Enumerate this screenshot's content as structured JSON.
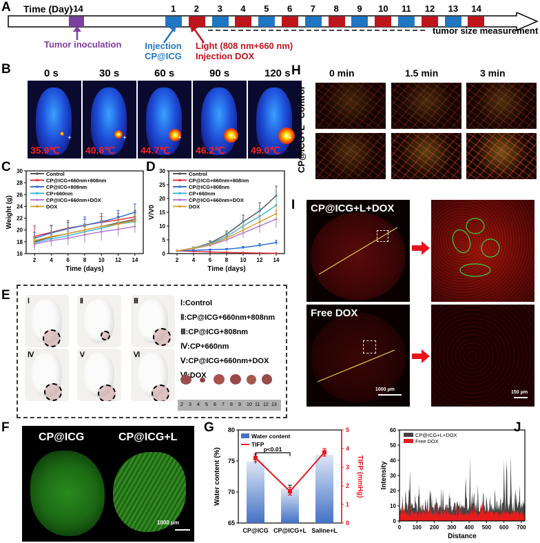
{
  "panels": {
    "A": "A",
    "B": "B",
    "C": "C",
    "D": "D",
    "E": "E",
    "F": "F",
    "G": "G",
    "H": "H",
    "I": "I",
    "J": "J"
  },
  "timeline": {
    "title": "Time (Day)",
    "day_neg": "-14",
    "days": [
      "1",
      "2",
      "3",
      "4",
      "5",
      "6",
      "7",
      "8",
      "9",
      "10",
      "11",
      "12",
      "13",
      "14"
    ],
    "tumor_inoculation": "Tumor inoculation",
    "injection_line1": "Injection",
    "injection_line2": "CP@ICG",
    "light_line1": "Light (808 nm+660 nm)",
    "light_line2": "Injection DOX",
    "measurement": "tumor size measurement",
    "colors": {
      "purple": "#7b3fa0",
      "blue": "#1f77c4",
      "red": "#c0141c"
    }
  },
  "thermal": {
    "times": [
      "0 s",
      "30 s",
      "60 s",
      "90 s",
      "120 s"
    ],
    "temps": [
      "35.9℃",
      "40.8℃",
      "44.7℃",
      "46.2℃",
      "49.0℃"
    ]
  },
  "chart_data": [
    {
      "id": "C",
      "type": "line",
      "xlabel": "Time (days)",
      "ylabel": "Weight (g)",
      "x": [
        2,
        4,
        6,
        8,
        10,
        12,
        14
      ],
      "xticks": [
        "2",
        "4",
        "6",
        "8",
        "10",
        "12",
        "14"
      ],
      "yticks": [
        "16",
        "18",
        "20",
        "22",
        "24",
        "26",
        "28",
        "30"
      ],
      "ylim": [
        16,
        30
      ],
      "xlim": [
        1,
        15
      ],
      "series": [
        {
          "name": "Control",
          "color": "#555555",
          "values": [
            18.0,
            18.8,
            19.4,
            20.0,
            20.6,
            21.2,
            21.8
          ],
          "err": [
            0.8,
            0.9,
            0.9,
            1.0,
            1.0,
            1.1,
            1.1
          ]
        },
        {
          "name": "CP@ICG+660nm+808nm",
          "color": "#e0303a",
          "values": [
            18.9,
            19.6,
            20.3,
            20.8,
            21.3,
            21.7,
            22.2
          ],
          "err": [
            1.8,
            1.2,
            1.0,
            1.0,
            1.0,
            1.1,
            1.1
          ]
        },
        {
          "name": "CP@ICG+808nm",
          "color": "#2f6fd6",
          "values": [
            18.6,
            19.5,
            20.2,
            20.8,
            21.4,
            22.1,
            23.0
          ],
          "err": [
            1.0,
            1.2,
            1.4,
            1.4,
            1.4,
            1.2,
            1.4
          ]
        },
        {
          "name": "CP+660nm",
          "color": "#3db8d8",
          "values": [
            17.8,
            18.5,
            19.0,
            19.7,
            20.3,
            21.0,
            21.4
          ],
          "err": [
            0.7,
            0.8,
            0.8,
            0.9,
            0.9,
            1.0,
            1.0
          ]
        },
        {
          "name": "CP@ICG+660nm+DOX",
          "color": "#b57ad8",
          "values": [
            17.6,
            18.2,
            18.6,
            19.2,
            19.7,
            20.1,
            20.6
          ],
          "err": [
            1.0,
            1.0,
            1.2,
            1.3,
            1.5,
            1.2,
            1.1
          ]
        },
        {
          "name": "DOX",
          "color": "#d8a030",
          "values": [
            18.2,
            18.9,
            19.4,
            20.0,
            20.6,
            21.0,
            21.6
          ],
          "err": [
            0.7,
            0.8,
            0.8,
            0.9,
            0.9,
            1.0,
            1.0
          ]
        }
      ]
    },
    {
      "id": "D",
      "type": "line",
      "xlabel": "Time (days)",
      "ylabel": "V/V0",
      "x": [
        2,
        4,
        6,
        8,
        10,
        12,
        14
      ],
      "xticks": [
        "2",
        "4",
        "6",
        "8",
        "10",
        "12",
        "14"
      ],
      "yticks": [
        "0",
        "5",
        "10",
        "15",
        "20",
        "25",
        "30"
      ],
      "ylim": [
        0,
        30
      ],
      "xlim": [
        1,
        15
      ],
      "series": [
        {
          "name": "Control",
          "color": "#555555",
          "values": [
            1.0,
            2.0,
            3.8,
            7.0,
            11.5,
            15.5,
            21.0
          ],
          "err": [
            0.1,
            0.4,
            0.8,
            1.2,
            2.5,
            3.0,
            3.5
          ]
        },
        {
          "name": "CP@ICG+660nm+808nm",
          "color": "#e0303a",
          "values": [
            1.0,
            0.8,
            0.6,
            0.4,
            0.3,
            0.2,
            0.1
          ],
          "err": [
            0.05,
            0.1,
            0.1,
            0.1,
            0.1,
            0.05,
            0.05
          ]
        },
        {
          "name": "CP@ICG+808nm",
          "color": "#2f6fd6",
          "values": [
            1.0,
            1.2,
            1.4,
            1.6,
            2.2,
            3.0,
            4.0
          ],
          "err": [
            0.1,
            0.2,
            0.2,
            0.3,
            0.4,
            0.6,
            0.8
          ]
        },
        {
          "name": "CP+660nm",
          "color": "#3db8d8",
          "values": [
            1.0,
            2.0,
            3.5,
            6.2,
            10.0,
            13.5,
            17.5
          ],
          "err": [
            0.1,
            0.4,
            0.8,
            1.3,
            2.0,
            2.8,
            3.5
          ]
        },
        {
          "name": "CP@ICG+660nm+DOX",
          "color": "#b57ad8",
          "values": [
            1.0,
            1.8,
            3.0,
            5.0,
            7.5,
            10.0,
            12.5
          ],
          "err": [
            0.1,
            0.3,
            0.7,
            1.2,
            1.8,
            2.5,
            3.0
          ]
        },
        {
          "name": "DOX",
          "color": "#d8a030",
          "values": [
            1.0,
            1.9,
            3.2,
            5.6,
            8.5,
            11.5,
            14.5
          ],
          "err": [
            0.1,
            0.3,
            0.6,
            1.1,
            1.7,
            2.3,
            3.0
          ]
        }
      ]
    },
    {
      "id": "G",
      "type": "bar",
      "ylabel": "Water content (%)",
      "y2label": "TIFP (mmHg)",
      "categories": [
        "CP@ICG",
        "CP@ICG+L",
        "Saline+L"
      ],
      "series": [
        {
          "name": "Water content",
          "color": "#4472c4",
          "values": [
            74.9,
            70.6,
            76.0
          ],
          "err": [
            0.3,
            0.5,
            0.3
          ]
        },
        {
          "name": "TIFP",
          "color": "#e8141c",
          "values": [
            3.5,
            1.7,
            3.8
          ],
          "err": [
            0.2,
            0.2,
            0.2
          ]
        }
      ],
      "yticks": [
        "65",
        "70",
        "75",
        "80"
      ],
      "ylim": [
        65,
        80
      ],
      "y2ticks": [
        "0",
        "1",
        "2",
        "3",
        "4",
        "5"
      ],
      "y2lim": [
        0,
        5
      ],
      "annotation": "p<0.01"
    },
    {
      "id": "J",
      "type": "area",
      "xlabel": "Distance",
      "ylabel": "Intensity",
      "xticks": [
        "0",
        "100",
        "200",
        "300",
        "400",
        "500",
        "600",
        "700"
      ],
      "yticks": [
        "0",
        "10",
        "20",
        "30",
        "40",
        "50",
        "60"
      ],
      "xlim": [
        0,
        720
      ],
      "ylim": [
        0,
        60
      ],
      "series": [
        {
          "name": "CP@ICG+L+DOX",
          "color": "#444444",
          "peaks": [
            [
              35,
              32
            ],
            [
              60,
              40
            ],
            [
              90,
              25
            ],
            [
              110,
              30
            ],
            [
              150,
              24
            ],
            [
              175,
              28
            ],
            [
              210,
              20
            ],
            [
              240,
              22
            ],
            [
              290,
              26
            ],
            [
              330,
              18
            ],
            [
              380,
              47
            ],
            [
              405,
              43
            ],
            [
              450,
              30
            ],
            [
              480,
              22
            ],
            [
              520,
              20
            ],
            [
              560,
              24
            ],
            [
              600,
              50
            ],
            [
              615,
              56
            ],
            [
              640,
              58
            ],
            [
              665,
              40
            ],
            [
              690,
              28
            ]
          ],
          "baseline": 9
        },
        {
          "name": "Free DOX",
          "color": "#e81c1c",
          "baseline": 5,
          "peaks": [
            [
              30,
              9
            ],
            [
              120,
              7
            ],
            [
              260,
              8
            ],
            [
              420,
              7
            ],
            [
              600,
              9
            ],
            [
              700,
              10
            ]
          ]
        }
      ]
    }
  ],
  "legend_items": [
    "Control",
    "CP@ICG+660nm+808nm",
    "CP@ICG+808nm",
    "CP+660nm",
    "CP@ICG+660nm+DOX",
    "DOX"
  ],
  "groupsE": [
    {
      "num": "Ⅰ",
      "label": "Ⅰ:Control"
    },
    {
      "num": "Ⅱ",
      "label": "Ⅱ:CP@ICG+660nm+808nm"
    },
    {
      "num": "Ⅲ",
      "label": "Ⅲ:CP@ICG+808nm"
    },
    {
      "num": "Ⅳ",
      "label": "Ⅳ:CP+660nm"
    },
    {
      "num": "Ⅴ",
      "label": "Ⅴ:CP@ICG+660nm+DOX"
    },
    {
      "num": "Ⅵ",
      "label": "Ⅵ:DOX"
    }
  ],
  "ruler_ticks": [
    "2",
    "3",
    "4",
    "5",
    "6",
    "7",
    "8",
    "9",
    "10",
    "11",
    "12",
    "13"
  ],
  "F": {
    "left": "CP@ICG",
    "right": "CP@ICG+L",
    "scale": "1000 μm"
  },
  "H": {
    "times": [
      "0 min",
      "1.5 min",
      "3 min"
    ],
    "rows": [
      "Control",
      "CP@ICG+L"
    ]
  },
  "I": {
    "top": "CP@ICG+L+DOX",
    "bottom": "Free DOX",
    "scale1": "1000 μm",
    "scale2": "150 μm"
  }
}
